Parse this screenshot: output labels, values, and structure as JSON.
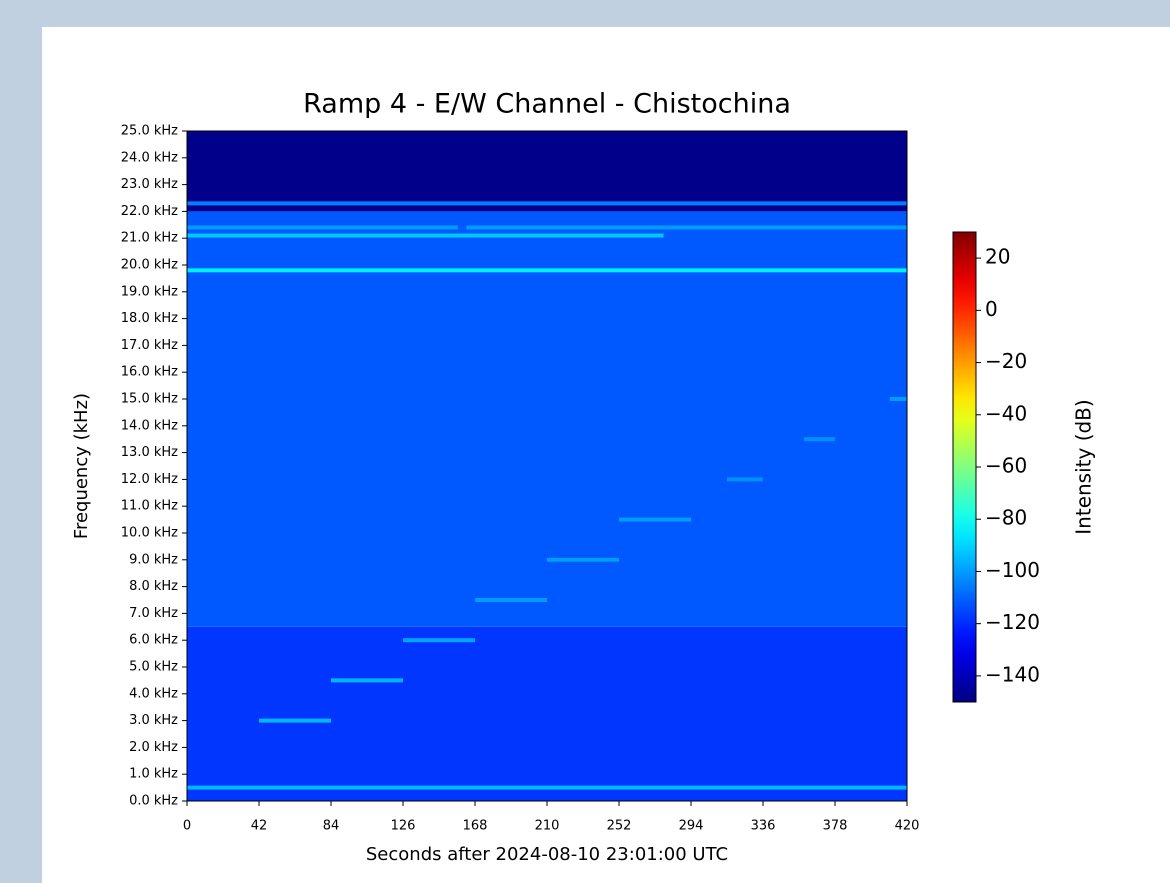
{
  "chart_data": {
    "type": "spectrogram",
    "title": "Ramp 4 -  E/W Channel - Chistochina",
    "xlabel": "Seconds after 2024-08-10 23:01:00 UTC",
    "ylabel": "Frequency (kHz)",
    "xlim": [
      0,
      420
    ],
    "xticks": [
      0,
      42,
      84,
      126,
      168,
      210,
      252,
      294,
      336,
      378,
      420
    ],
    "ylim": [
      0,
      25
    ],
    "yticks": [
      {
        "value": 0,
        "label": "0.0 kHz"
      },
      {
        "value": 1,
        "label": "1.0 kHz"
      },
      {
        "value": 2,
        "label": "2.0 kHz"
      },
      {
        "value": 3,
        "label": "3.0 kHz"
      },
      {
        "value": 4,
        "label": "4.0 kHz"
      },
      {
        "value": 5,
        "label": "5.0 kHz"
      },
      {
        "value": 6,
        "label": "6.0 kHz"
      },
      {
        "value": 7,
        "label": "7.0 kHz"
      },
      {
        "value": 8,
        "label": "8.0 kHz"
      },
      {
        "value": 9,
        "label": "9.0 kHz"
      },
      {
        "value": 10,
        "label": "10.0 kHz"
      },
      {
        "value": 11,
        "label": "11.0 kHz"
      },
      {
        "value": 12,
        "label": "12.0 kHz"
      },
      {
        "value": 13,
        "label": "13.0 kHz"
      },
      {
        "value": 14,
        "label": "14.0 kHz"
      },
      {
        "value": 15,
        "label": "15.0 kHz"
      },
      {
        "value": 16,
        "label": "16.0 kHz"
      },
      {
        "value": 17,
        "label": "17.0 kHz"
      },
      {
        "value": 18,
        "label": "18.0 kHz"
      },
      {
        "value": 19,
        "label": "19.0 kHz"
      },
      {
        "value": 20,
        "label": "20.0 kHz"
      },
      {
        "value": 21,
        "label": "21.0 kHz"
      },
      {
        "value": 22,
        "label": "22.0 kHz"
      },
      {
        "value": 23,
        "label": "23.0 kHz"
      },
      {
        "value": 24,
        "label": "24.0 kHz"
      },
      {
        "value": 25,
        "label": "25.0 kHz"
      }
    ],
    "colormap": "jet",
    "colorbar": {
      "label": "Intensity (dB)",
      "lim": [
        -150,
        30
      ],
      "ticks": [
        20,
        0,
        {
          "value": -20,
          "label": "−20"
        },
        {
          "value": -40,
          "label": "−40"
        },
        {
          "value": -60,
          "label": "−60"
        },
        {
          "value": -80,
          "label": "−80"
        },
        {
          "value": -100,
          "label": "−100"
        },
        {
          "value": -120,
          "label": "−120"
        },
        {
          "value": -140,
          "label": "−140"
        }
      ]
    },
    "bands": [
      {
        "range": [
          0,
          6.5
        ],
        "intensity": -118
      },
      {
        "range": [
          6.5,
          22
        ],
        "intensity": -112
      },
      {
        "range": [
          22,
          25
        ],
        "intensity": -148
      }
    ],
    "lines": [
      {
        "freq": 19.8,
        "x": [
          0,
          420
        ],
        "intensity": -85
      },
      {
        "freq": 22.3,
        "x": [
          0,
          420
        ],
        "intensity": -105
      },
      {
        "freq": 21.4,
        "x": [
          0,
          158
        ],
        "intensity": -100
      },
      {
        "freq": 21.4,
        "x": [
          163,
          420
        ],
        "intensity": -100
      },
      {
        "freq": 21.1,
        "x": [
          0,
          278
        ],
        "intensity": -92
      },
      {
        "freq": 0.5,
        "x": [
          0,
          420
        ],
        "intensity": -95
      },
      {
        "freq": 3.0,
        "x": [
          42,
          84
        ],
        "intensity": -95
      },
      {
        "freq": 4.5,
        "x": [
          84,
          126
        ],
        "intensity": -95
      },
      {
        "freq": 6.0,
        "x": [
          126,
          168
        ],
        "intensity": -98
      },
      {
        "freq": 7.5,
        "x": [
          168,
          210
        ],
        "intensity": -100
      },
      {
        "freq": 9.0,
        "x": [
          210,
          252
        ],
        "intensity": -100
      },
      {
        "freq": 10.5,
        "x": [
          252,
          294
        ],
        "intensity": -100
      },
      {
        "freq": 12.0,
        "x": [
          315,
          336
        ],
        "intensity": -102
      },
      {
        "freq": 13.5,
        "x": [
          360,
          378
        ],
        "intensity": -102
      },
      {
        "freq": 15.0,
        "x": [
          410,
          420
        ],
        "intensity": -100
      }
    ]
  }
}
